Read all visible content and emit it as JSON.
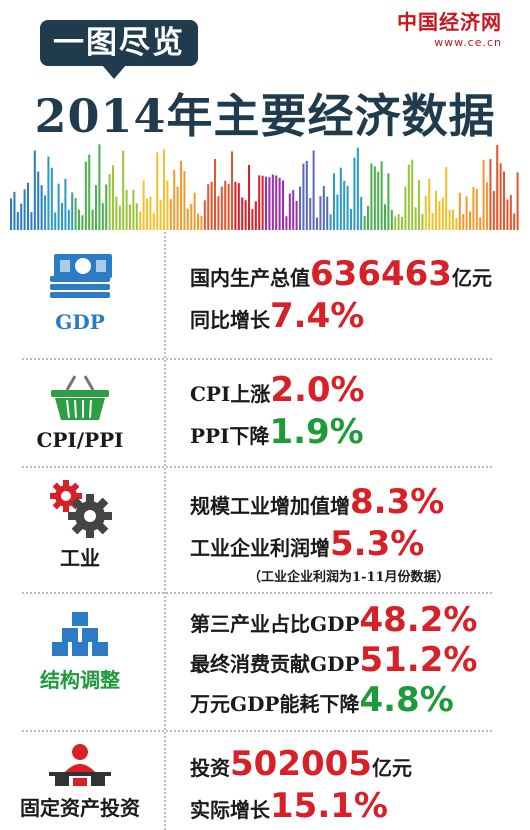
{
  "brand": {
    "name": "中国经济网",
    "url": "www.ce.cn"
  },
  "header": {
    "bubble": "一图尽览",
    "title": "2014年主要经济数据"
  },
  "colors": {
    "navy": "#1f3b4d",
    "red": "#d72027",
    "green": "#1f9a3a",
    "blue": "#2b7cc4"
  },
  "sections": {
    "gdp": {
      "label": "GDP",
      "icon": "money-stack-icon",
      "line1_prefix": "国内生产总值",
      "line1_value": "636463",
      "line1_suffix": "亿元",
      "line2_prefix": "同比增长",
      "line2_value": "7.4%"
    },
    "cpi": {
      "label": "CPI/PPI",
      "icon": "shopping-basket-icon",
      "line1_prefix": "CPI上涨",
      "line1_value": "2.0%",
      "line2_prefix": "PPI下降",
      "line2_value": "1.9%"
    },
    "industry": {
      "label": "工业",
      "icon": "gears-icon",
      "line1_prefix": "规模工业增加值增",
      "line1_value": "8.3%",
      "line2_prefix": "工业企业利润增",
      "line2_value": "5.3%",
      "note": "（工业企业利润为1-11月份数据）"
    },
    "structure": {
      "label": "结构调整",
      "icon": "blocks-icon",
      "line1_prefix": "第三产业占比GDP",
      "line1_value": "48.2%",
      "line2_prefix": "最终消费贡献GDP",
      "line2_value": "51.2%",
      "line3_prefix": "万元GDP能耗下降",
      "line3_value": "4.8%"
    },
    "investment": {
      "label": "固定资产投资",
      "icon": "investor-icon",
      "line1_prefix": "投资",
      "line1_value": "502005",
      "line1_suffix": "亿元",
      "line2_prefix": "实际增长",
      "line2_value": "15.1%"
    }
  }
}
